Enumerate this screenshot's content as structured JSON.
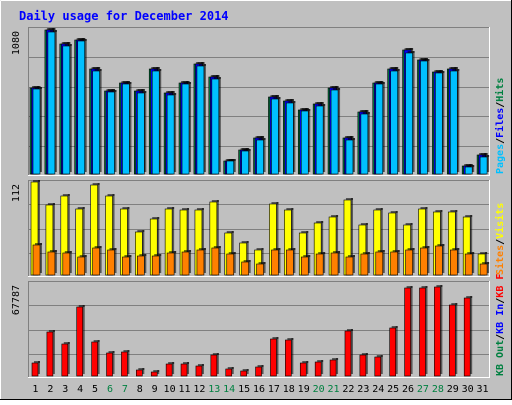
{
  "chart_data": {
    "type": "bar",
    "title": "Daily usage for December 2014",
    "days": [
      "1",
      "2",
      "3",
      "4",
      "5",
      "6",
      "7",
      "8",
      "9",
      "10",
      "11",
      "12",
      "13",
      "14",
      "15",
      "16",
      "17",
      "18",
      "19",
      "20",
      "21",
      "22",
      "23",
      "24",
      "25",
      "26",
      "27",
      "28",
      "29",
      "30",
      "31"
    ],
    "weekend_days": [
      "6",
      "7",
      "13",
      "14",
      "20",
      "21",
      "27",
      "28"
    ],
    "colors": {
      "background": "#c0c0c0",
      "title": "#0000ff",
      "hits": "#008040",
      "files": "#0000ff",
      "pages": "#00c0ff",
      "visits": "#ffff00",
      "sites": "#ff8000",
      "kb_in": "#008040",
      "kb_out": "#0000ff",
      "kb_f": "#ff0000",
      "weekend_label": "#008040",
      "weekday_label": "#000000"
    },
    "panels": [
      {
        "name": "hits-files-pages",
        "max_label": "1080",
        "ymax": 1080,
        "legend": [
          {
            "label": "Hits",
            "color_key": "hits"
          },
          {
            "label": "/",
            "color_key": "weekday_label"
          },
          {
            "label": "Files",
            "color_key": "files"
          },
          {
            "label": "/",
            "color_key": "weekday_label"
          },
          {
            "label": "Pages",
            "color_key": "pages"
          }
        ],
        "series": [
          {
            "name": "Hits",
            "color_key": "hits",
            "values": [
              640,
              1075,
              970,
              1000,
              780,
              620,
              680,
              620,
              780,
              600,
              680,
              820,
              720,
              100,
              180,
              270,
              570,
              540,
              480,
              520,
              640,
              270,
              460,
              680,
              780,
              920,
              850,
              760,
              780,
              60,
              140
            ]
          },
          {
            "name": "Files",
            "color_key": "files",
            "values": [
              640,
              1075,
              970,
              1000,
              780,
              620,
              680,
              620,
              780,
              600,
              680,
              820,
              720,
              100,
              180,
              270,
              570,
              540,
              480,
              520,
              640,
              270,
              460,
              680,
              780,
              920,
              850,
              760,
              780,
              60,
              140
            ]
          },
          {
            "name": "Pages",
            "color_key": "pages",
            "values": [
              630,
              1055,
              950,
              990,
              765,
              610,
              670,
              605,
              770,
              585,
              670,
              805,
              710,
              95,
              170,
              255,
              560,
              530,
              470,
              510,
              625,
              255,
              450,
              670,
              765,
              900,
              840,
              750,
              765,
              55,
              130
            ]
          }
        ]
      },
      {
        "name": "visits-sites",
        "max_label": "112",
        "ymax": 112,
        "legend": [
          {
            "label": "Visits",
            "color_key": "visits"
          },
          {
            "label": "/",
            "color_key": "weekday_label"
          },
          {
            "label": "Sites",
            "color_key": "sites"
          }
        ],
        "series": [
          {
            "name": "Visits",
            "color_key": "visits",
            "values": [
              112,
              84,
              95,
              80,
              108,
              95,
              80,
              52,
              68,
              80,
              78,
              78,
              88,
              50,
              38,
              30,
              86,
              78,
              50,
              63,
              70,
              90,
              60,
              78,
              75,
              60,
              80,
              76,
              76,
              70,
              25
            ]
          },
          {
            "name": "Sites",
            "color_key": "sites",
            "values": [
              36,
              28,
              27,
              22,
              32,
              30,
              22,
              23,
              23,
              27,
              28,
              30,
              32,
              25,
              16,
              13,
              30,
              30,
              22,
              25,
              26,
              22,
              25,
              28,
              28,
              30,
              32,
              35,
              30,
              25,
              13
            ]
          }
        ]
      },
      {
        "name": "kbytes",
        "max_label": "67787",
        "ymax": 67787,
        "legend": [
          {
            "label": "KB F",
            "color_key": "kb_f"
          },
          {
            "label": "/",
            "color_key": "weekday_label"
          },
          {
            "label": "KB In",
            "color_key": "kb_out"
          },
          {
            "label": "/",
            "color_key": "weekday_label"
          },
          {
            "label": "KB Out",
            "color_key": "kb_in"
          }
        ],
        "series": [
          {
            "name": "KB F",
            "color_key": "kb_f",
            "values": [
              9500,
              32000,
              23000,
              50500,
              25000,
              17000,
              17500,
              4500,
              3200,
              8500,
              8500,
              7000,
              15500,
              5200,
              3800,
              6200,
              27000,
              26500,
              9500,
              10500,
              12000,
              33000,
              15500,
              13500,
              35000,
              64500,
              64500,
              65000,
              52000,
              56500,
              0
            ]
          }
        ]
      }
    ]
  }
}
